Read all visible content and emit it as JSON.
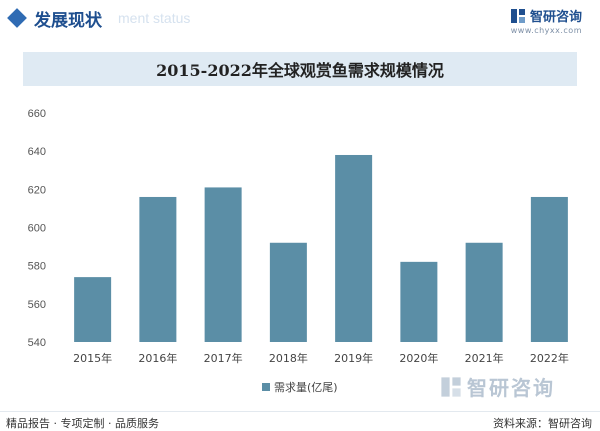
{
  "header": {
    "section_title": "发展现状",
    "section_subtitle": "ment status",
    "brand_name": "智研咨询",
    "brand_url": "www.chyxx.com"
  },
  "chart_data": {
    "type": "bar",
    "title": "2015-2022年全球观赏鱼需求规模情况",
    "categories": [
      "2015年",
      "2016年",
      "2017年",
      "2018年",
      "2019年",
      "2020年",
      "2021年",
      "2022年"
    ],
    "series": [
      {
        "name": "需求量(亿尾)",
        "values": [
          574,
          616,
          621,
          592,
          638,
          582,
          592,
          616
        ]
      }
    ],
    "ylim": [
      540,
      660
    ],
    "yticks": [
      540,
      560,
      580,
      600,
      620,
      640,
      660
    ],
    "xlabel": "",
    "ylabel": "",
    "grid": false,
    "legend": "bottom",
    "bar_color": "#5b8ea6"
  },
  "footer": {
    "left_text": "精品报告 · 专项定制 · 品质服务",
    "source_text": "资料来源：智研咨询",
    "watermark_brand": "智研咨询"
  },
  "colors": {
    "accent": "#2f6bb3",
    "title_bar": "#dfeaf3",
    "bar": "#5b8ea6"
  }
}
